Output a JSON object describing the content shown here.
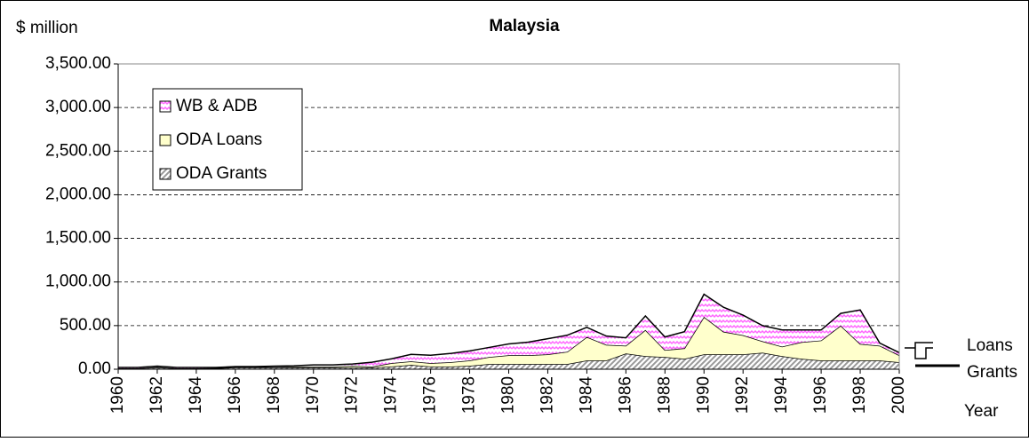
{
  "chart_data": {
    "type": "stacked-area",
    "title": "Malaysia",
    "y_label": "$ million",
    "x_label": "Year",
    "annotations": [
      "Loans",
      "Grants"
    ],
    "x": [
      1960,
      1961,
      1962,
      1963,
      1964,
      1965,
      1966,
      1967,
      1968,
      1969,
      1970,
      1971,
      1972,
      1973,
      1974,
      1975,
      1976,
      1977,
      1978,
      1979,
      1980,
      1981,
      1982,
      1983,
      1984,
      1985,
      1986,
      1987,
      1988,
      1989,
      1990,
      1991,
      1992,
      1993,
      1994,
      1995,
      1996,
      1997,
      1998,
      1999,
      2000
    ],
    "series": [
      {
        "name": "ODA Grants",
        "color": "#999999",
        "values": [
          10,
          10,
          20,
          10,
          10,
          10,
          20,
          20,
          20,
          20,
          20,
          20,
          20,
          20,
          30,
          50,
          30,
          30,
          40,
          60,
          60,
          60,
          60,
          60,
          100,
          100,
          180,
          150,
          140,
          120,
          170,
          170,
          170,
          190,
          150,
          120,
          100,
          100,
          100,
          100,
          80
        ]
      },
      {
        "name": "ODA Loans",
        "color": "#ffffcc",
        "values": [
          0,
          0,
          5,
          0,
          0,
          5,
          5,
          5,
          5,
          10,
          10,
          10,
          20,
          10,
          40,
          40,
          40,
          50,
          60,
          80,
          100,
          100,
          110,
          140,
          270,
          180,
          90,
          300,
          80,
          120,
          430,
          260,
          220,
          130,
          110,
          190,
          230,
          400,
          190,
          170,
          80
        ]
      },
      {
        "name": "WB & ADB",
        "color": "#ff66ff",
        "values": [
          10,
          10,
          10,
          10,
          10,
          5,
          5,
          5,
          10,
          10,
          20,
          20,
          20,
          50,
          50,
          80,
          90,
          100,
          110,
          110,
          130,
          150,
          180,
          190,
          110,
          100,
          90,
          160,
          150,
          190,
          260,
          280,
          230,
          180,
          190,
          140,
          120,
          140,
          390,
          30,
          30
        ]
      }
    ],
    "xlim": [
      1960,
      2000
    ],
    "xticks": [
      1960,
      1962,
      1964,
      1966,
      1968,
      1970,
      1972,
      1974,
      1976,
      1978,
      1980,
      1982,
      1984,
      1986,
      1988,
      1990,
      1992,
      1994,
      1996,
      1998,
      2000
    ],
    "ylim": [
      0,
      3500
    ],
    "yticks": [
      {
        "value": 0,
        "label": "0.00"
      },
      {
        "value": 500,
        "label": "500.00"
      },
      {
        "value": 1000,
        "label": "1,000.00"
      },
      {
        "value": 1500,
        "label": "1,500.00"
      },
      {
        "value": 2000,
        "label": "2,000.00"
      },
      {
        "value": 2500,
        "label": "2,500.00"
      },
      {
        "value": 3000,
        "label": "3,000.00"
      },
      {
        "value": 3500,
        "label": "3,500.00"
      }
    ],
    "grid": true,
    "legend": "upper-left"
  }
}
